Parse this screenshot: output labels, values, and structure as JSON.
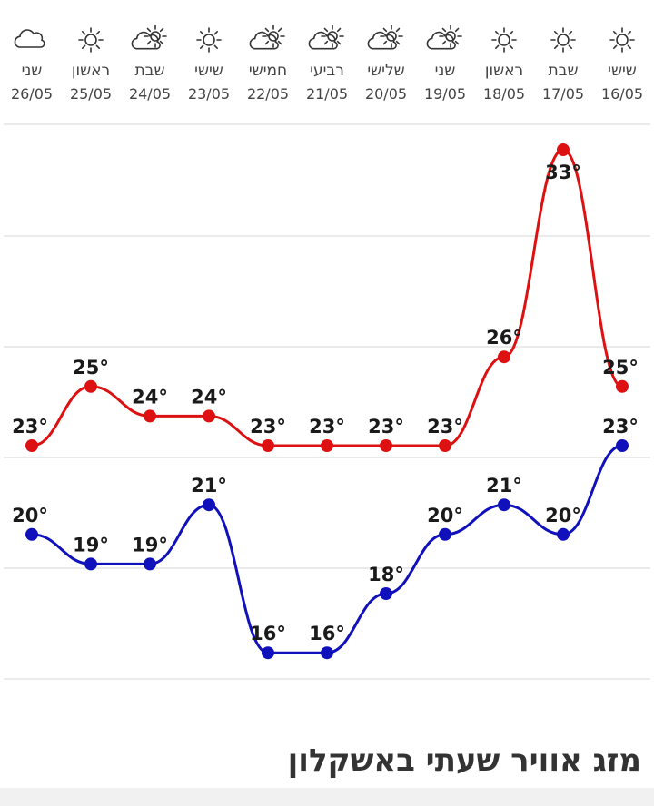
{
  "page_title": "מזג אוויר שעתי באשקלון",
  "colors": {
    "high": "#dd1111",
    "low": "#1111bb",
    "grid": "#e3e3e3"
  },
  "chart_data": {
    "type": "line",
    "x": [
      "26/05",
      "25/05",
      "24/05",
      "23/05",
      "22/05",
      "21/05",
      "20/05",
      "19/05",
      "18/05",
      "17/05",
      "16/05"
    ],
    "day_names": [
      "שני",
      "ראשון",
      "שבת",
      "שישי",
      "חמישי",
      "רביעי",
      "שלישי",
      "שני",
      "ראשון",
      "שבת",
      "שישי"
    ],
    "icons": [
      "cloud-icon",
      "sun-icon",
      "partly-cloudy-icon",
      "sun-icon",
      "partly-cloudy-icon",
      "partly-cloudy-icon",
      "partly-cloudy-icon",
      "partly-cloudy-icon",
      "sun-icon",
      "sun-icon",
      "sun-icon"
    ],
    "series": [
      {
        "values": [
          23,
          25,
          24,
          24,
          23,
          23,
          23,
          23,
          26,
          33,
          25
        ],
        "labels": [
          "23°",
          "25°",
          "24°",
          "24°",
          "23°",
          "23°",
          "23°",
          "23°",
          "26°",
          "33°",
          "25°"
        ],
        "color": "#dd1111"
      },
      {
        "values": [
          20,
          19,
          19,
          21,
          16,
          16,
          18,
          20,
          21,
          20,
          23
        ],
        "labels": [
          "20°",
          "19°",
          "19°",
          "21°",
          "16°",
          "16°",
          "18°",
          "20°",
          "21°",
          "20°",
          "23°"
        ],
        "color": "#1111bb"
      }
    ],
    "grid": true
  }
}
